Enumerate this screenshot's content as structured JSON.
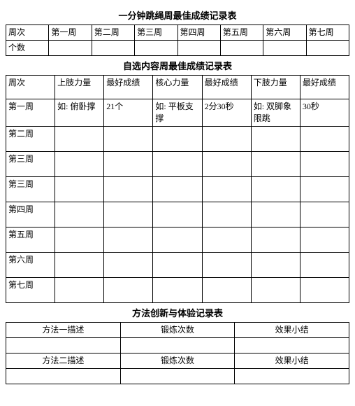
{
  "table1": {
    "title": "一分钟跳绳周最佳成绩记录表",
    "row_header": "周次",
    "row2_header": "个数",
    "cols": [
      "第一周",
      "第二周",
      "第三周",
      "第四周",
      "第五周",
      "第六周",
      "第七周"
    ]
  },
  "table2": {
    "title": "自选内容周最佳成绩记录表",
    "col_headers": [
      "周次",
      "上肢力量",
      "最好成绩",
      "核心力量",
      "最好成绩",
      "下肢力量",
      "最好成绩"
    ],
    "weeks": [
      "第一周",
      "第二周",
      "第三周",
      "第三周",
      "第四周",
      "第五周",
      "第六周",
      "第七周"
    ],
    "row1": {
      "c1": "如: 俯卧撑",
      "c2": "21个",
      "c3": "如: 平板支撑",
      "c4": "2分30秒",
      "c5": "如: 双脚象限跳",
      "c6": "30秒"
    }
  },
  "table3": {
    "title": "方法创新与体验记录表",
    "row1": [
      "方法一描述",
      "锻炼次数",
      "效果小结"
    ],
    "row3": [
      "方法二描述",
      "锻炼次数",
      "效果小结"
    ]
  }
}
